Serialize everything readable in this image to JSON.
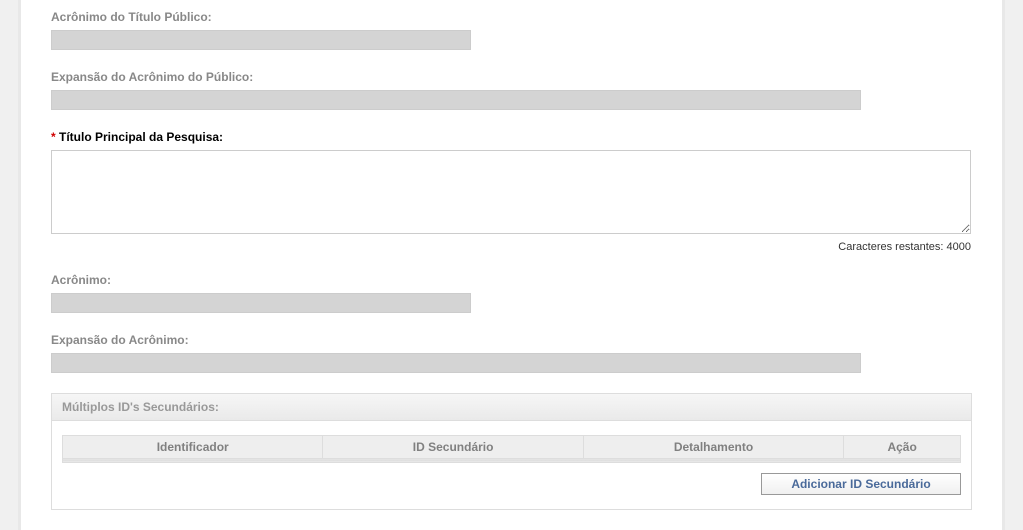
{
  "fields": {
    "acronimo_titulo_publico": {
      "label": "Acrônimo do Título Público:",
      "value": ""
    },
    "expansao_acronimo_publico": {
      "label": "Expansão do Acrônimo do Público:",
      "value": ""
    },
    "titulo_principal": {
      "label": "Título Principal da Pesquisa:",
      "value": "",
      "required": true
    },
    "acronimo": {
      "label": "Acrônimo:",
      "value": ""
    },
    "expansao_acronimo": {
      "label": "Expansão do Acrônimo:",
      "value": ""
    }
  },
  "char_counter": {
    "prefix": "Caracteres restantes: ",
    "count": "4000"
  },
  "section": {
    "title": "Múltiplos ID's Secundários:",
    "columns": {
      "identificador": "Identificador",
      "id_secundario": "ID Secundário",
      "detalhamento": "Detalhamento",
      "acao": "Ação"
    },
    "add_button": "Adicionar ID Secundário"
  },
  "style": {
    "label_color": "#888888",
    "label_required_color": "#000000",
    "asterisk_color": "#d00000",
    "input_disabled_bg": "#d4d4d4",
    "border_color": "#cccccc",
    "section_border": "#dddddd",
    "section_header_bg_top": "#f6f6f6",
    "section_header_bg_bottom": "#eaeaea",
    "th_bg": "#eeeeee",
    "th_color": "#808080",
    "button_text_color": "#4a6a9a",
    "button_border": "#999999"
  }
}
